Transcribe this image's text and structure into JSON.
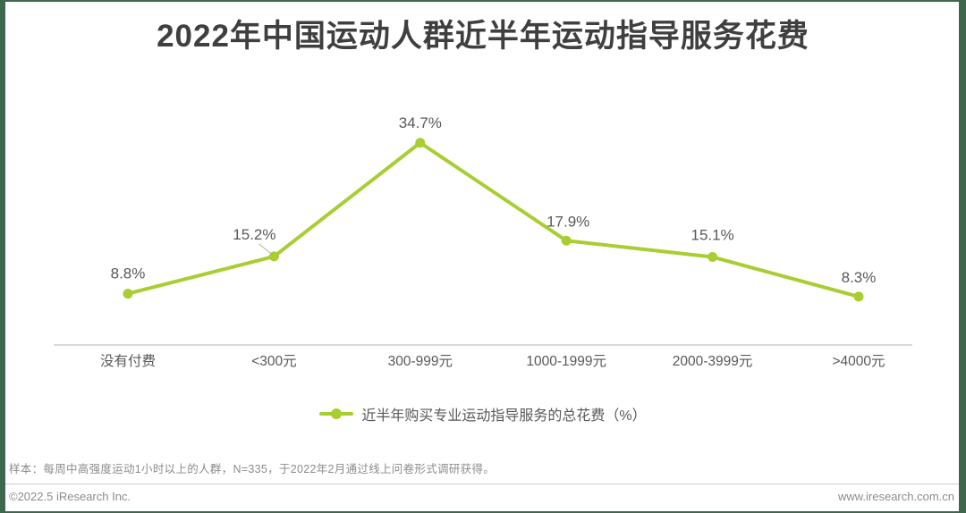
{
  "title": "2022年中国运动人群近半年运动指导服务花费",
  "chart_data": {
    "type": "line",
    "title": "2022年中国运动人群近半年运动指导服务花费",
    "categories": [
      "没有付费",
      "<300元",
      "300-999元",
      "1000-1999元",
      "2000-3999元",
      ">4000元"
    ],
    "series": [
      {
        "name": "近半年购买专业运动指导服务的总花费（%）",
        "values": [
          8.8,
          15.2,
          34.7,
          17.9,
          15.1,
          8.3
        ]
      }
    ],
    "xlabel": "",
    "ylabel": "",
    "ylim": [
      0,
      40
    ],
    "grid": false,
    "legend_position": "bottom",
    "value_label_suffix": "%",
    "line_color": "#a8ce32",
    "point_color": "#a8ce32",
    "label_color": "#595959",
    "axis_line_color": "#d9d9d9",
    "leader_line_color": "#b0b0b0"
  },
  "footer": {
    "note": "样本：每周中高强度运动1小时以上的人群，N=335，于2022年2月通过线上问卷形式调研获得。",
    "copyright": "©2022.5 iResearch Inc.",
    "website": "www.iresearch.com.cn"
  },
  "frame_color": "#3e684d",
  "title_color": "#3f3f3f"
}
